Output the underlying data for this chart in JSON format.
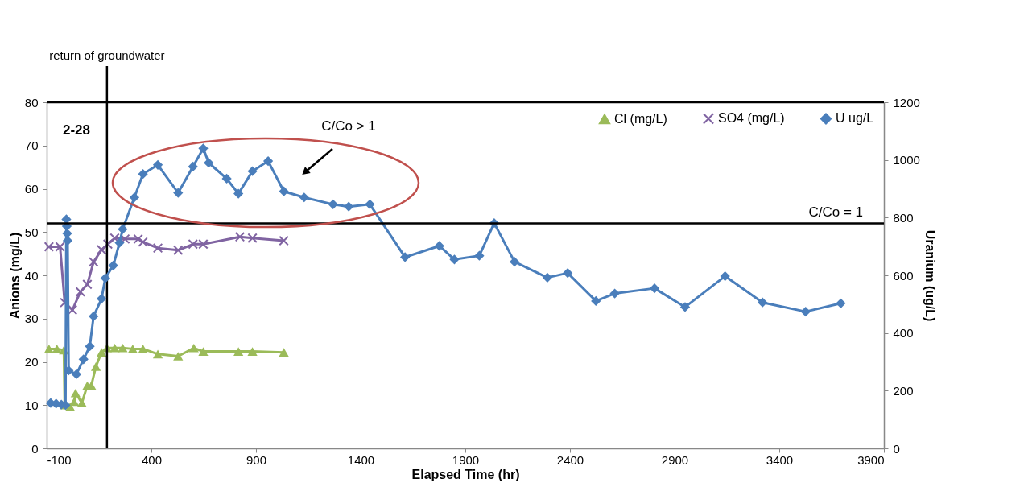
{
  "chart_data": {
    "type": "line",
    "xlabel": "Elapsed Time (hr)",
    "ylabel": "Anions (mg/L)",
    "y2label": "Uranium (ug/L)",
    "xlim": [
      -100,
      3900
    ],
    "xticks": [
      -100,
      400,
      900,
      1400,
      1900,
      2400,
      2900,
      3400,
      3900
    ],
    "ylim": [
      0,
      80
    ],
    "yticks": [
      0,
      10,
      20,
      30,
      40,
      50,
      60,
      70,
      80
    ],
    "y2lim": [
      0,
      1200
    ],
    "y2ticks": [
      0,
      200,
      400,
      600,
      800,
      1000,
      1200
    ],
    "grid": false,
    "legend": "top right",
    "series": [
      {
        "name": "Cl (mg/L)",
        "color": "#9bbb59",
        "marker": "triangle",
        "x": [
          -89,
          -51,
          -18,
          -14,
          12,
          31,
          38,
          68,
          94,
          113,
          135,
          162,
          188,
          225,
          263,
          311,
          360,
          431,
          528,
          603,
          648,
          816,
          883,
          1033
        ],
        "values": [
          23.0,
          23.0,
          22.7,
          10.0,
          9.6,
          10.8,
          12.8,
          10.5,
          14.5,
          14.5,
          18.9,
          22.2,
          23.2,
          23.2,
          23.2,
          23.0,
          23.0,
          21.8,
          21.3,
          23.2,
          22.4,
          22.4,
          22.4,
          22.2
        ]
      },
      {
        "name": "SO4 (mg/L)",
        "color": "#8064a2",
        "marker": "cross",
        "x": [
          -89,
          -36,
          -14,
          23,
          61,
          94,
          124,
          162,
          192,
          225,
          274,
          337,
          360,
          431,
          528,
          599,
          648,
          823,
          883,
          1033
        ],
        "values": [
          46.6,
          46.6,
          33.7,
          32.0,
          36.2,
          37.9,
          43.1,
          45.9,
          47.2,
          48.6,
          48.4,
          48.4,
          47.7,
          46.3,
          45.8,
          47.2,
          47.2,
          48.9,
          48.6,
          48.0
        ]
      },
      {
        "name": "U ug/L",
        "color": "#4a7ebb",
        "marker": "diamond",
        "axis": "y2",
        "x": [
          -81,
          -55,
          -30,
          -10,
          -6,
          -4,
          -2,
          0,
          5,
          42,
          76,
          106,
          124,
          162,
          180,
          218,
          248,
          263,
          319,
          360,
          431,
          528,
          599,
          648,
          674,
          760,
          816,
          883,
          958,
          1033,
          1130,
          1268,
          1343,
          1444,
          1612,
          1776,
          1848,
          1967,
          2038,
          2135,
          2292,
          2389,
          2524,
          2614,
          2804,
          2950,
          3141,
          3320,
          3526,
          3694
        ],
        "values": [
          157,
          155,
          152,
          150,
          794,
          770,
          745,
          720,
          270,
          257,
          309,
          354,
          458,
          519,
          590,
          634,
          713,
          760,
          870,
          951,
          983,
          886,
          977,
          1040,
          990,
          935,
          883,
          961,
          996,
          891,
          870,
          846,
          838,
          846,
          663,
          702,
          655,
          668,
          781,
          647,
          592,
          608,
          511,
          537,
          555,
          490,
          597,
          506,
          474,
          503
        ]
      }
    ],
    "ref_lines": [
      {
        "axis": "y2",
        "value": 780
      },
      {
        "axis": "x",
        "value": 188,
        "label": "return of groundwater"
      },
      {
        "axis": "y",
        "value": 80
      }
    ],
    "annotations": [
      "2-28",
      "C/Co > 1",
      {
        "text": "C/Co = 1",
        "x": 3800,
        "y": 52
      }
    ]
  }
}
